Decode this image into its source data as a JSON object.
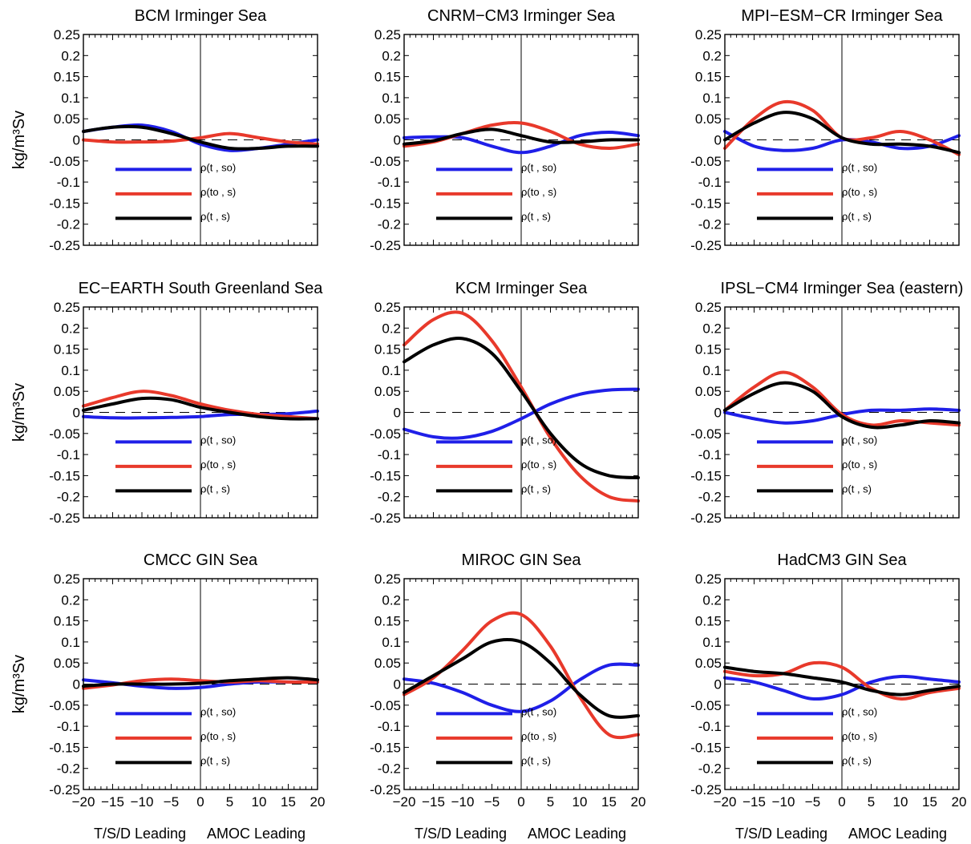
{
  "colors": {
    "s0": "#1f1fe8",
    "t0": "#e8392b",
    "ts": "#000000"
  },
  "y_axis_label": "kg/m³Sv",
  "x_notes": {
    "left": "T/S/D Leading",
    "right": "AMOC Leading"
  },
  "chart_data": [
    {
      "type": "line",
      "title": "BCM Irminger Sea",
      "xlim": [
        -20,
        20
      ],
      "ylim": [
        -0.25,
        0.25
      ],
      "xticks": [],
      "yticks": [
        "0.25",
        "0.2",
        "0.15",
        "0.1",
        "0.05",
        "0",
        "-0.05",
        "-0.1",
        "-0.15",
        "-0.2",
        "-0.25"
      ],
      "x": [
        -20,
        -15,
        -10,
        -5,
        0,
        5,
        10,
        15,
        20
      ],
      "series": [
        {
          "name": "ρ(t , so)",
          "values": [
            0.02,
            0.03,
            0.035,
            0.02,
            -0.01,
            -0.025,
            -0.02,
            -0.01,
            0.0
          ]
        },
        {
          "name": "ρ(to , s)",
          "values": [
            0.0,
            -0.005,
            -0.005,
            -0.003,
            0.005,
            0.015,
            0.005,
            -0.005,
            -0.01
          ]
        },
        {
          "name": "ρ(t , s)",
          "values": [
            0.02,
            0.03,
            0.03,
            0.015,
            -0.005,
            -0.02,
            -0.02,
            -0.015,
            -0.015
          ]
        }
      ]
    },
    {
      "type": "line",
      "title": "CNRM−CM3 Irminger Sea",
      "xlim": [
        -20,
        20
      ],
      "ylim": [
        -0.25,
        0.25
      ],
      "xticks": [],
      "yticks": [
        "0.25",
        "0.2",
        "0.15",
        "0.1",
        "0.05",
        "0",
        "-0.05",
        "-0.1",
        "-0.15",
        "-0.2",
        "-0.25"
      ],
      "x": [
        -20,
        -15,
        -10,
        -5,
        0,
        5,
        10,
        15,
        20
      ],
      "series": [
        {
          "name": "ρ(t , so)",
          "values": [
            0.005,
            0.007,
            0.005,
            -0.015,
            -0.03,
            -0.015,
            0.01,
            0.018,
            0.01
          ]
        },
        {
          "name": "ρ(to , s)",
          "values": [
            -0.015,
            -0.005,
            0.015,
            0.035,
            0.04,
            0.02,
            -0.01,
            -0.02,
            -0.01
          ]
        },
        {
          "name": "ρ(t , s)",
          "values": [
            -0.01,
            -0.002,
            0.015,
            0.025,
            0.01,
            -0.005,
            -0.005,
            0.0,
            0.0
          ]
        }
      ]
    },
    {
      "type": "line",
      "title": "MPI−ESM−CR Irminger Sea",
      "xlim": [
        -20,
        20
      ],
      "ylim": [
        -0.25,
        0.25
      ],
      "xticks": [],
      "yticks": [
        "0.25",
        "0.2",
        "0.15",
        "0.1",
        "0.05",
        "0",
        "-0.05",
        "-0.1",
        "-0.15",
        "-0.2",
        "-0.25"
      ],
      "x": [
        -20,
        -15,
        -10,
        -5,
        0,
        5,
        10,
        15,
        20
      ],
      "series": [
        {
          "name": "ρ(t , so)",
          "values": [
            0.02,
            -0.015,
            -0.025,
            -0.02,
            0.0,
            -0.005,
            -0.02,
            -0.015,
            0.01
          ]
        },
        {
          "name": "ρ(to , s)",
          "values": [
            -0.02,
            0.05,
            0.09,
            0.07,
            0.005,
            0.005,
            0.02,
            0.0,
            -0.035
          ]
        },
        {
          "name": "ρ(t , s)",
          "values": [
            0.0,
            0.04,
            0.065,
            0.05,
            0.005,
            -0.01,
            -0.01,
            -0.015,
            -0.03
          ]
        }
      ]
    },
    {
      "type": "line",
      "title": "EC−EARTH South Greenland Sea",
      "xlim": [
        -20,
        20
      ],
      "ylim": [
        -0.25,
        0.25
      ],
      "xticks": [],
      "yticks": [
        "0.25",
        "0.2",
        "0.15",
        "0.1",
        "0.05",
        "0",
        "-0.05",
        "-0.1",
        "-0.15",
        "-0.2",
        "-0.25"
      ],
      "x": [
        -20,
        -15,
        -10,
        -5,
        0,
        5,
        10,
        15,
        20
      ],
      "series": [
        {
          "name": "ρ(t , so)",
          "values": [
            -0.01,
            -0.013,
            -0.013,
            -0.012,
            -0.01,
            -0.005,
            -0.005,
            -0.003,
            0.003
          ]
        },
        {
          "name": "ρ(to , s)",
          "values": [
            0.015,
            0.035,
            0.05,
            0.04,
            0.02,
            0.005,
            -0.005,
            -0.01,
            -0.015
          ]
        },
        {
          "name": "ρ(t , s)",
          "values": [
            0.005,
            0.02,
            0.033,
            0.03,
            0.012,
            0.0,
            -0.01,
            -0.015,
            -0.015
          ]
        }
      ]
    },
    {
      "type": "line",
      "title": "KCM Irminger Sea",
      "xlim": [
        -20,
        20
      ],
      "ylim": [
        -0.25,
        0.25
      ],
      "xticks": [],
      "yticks": [
        "0.25",
        "0.2",
        "0.15",
        "0.1",
        "0.05",
        "0",
        "-0.05",
        "-0.1",
        "-0.15",
        "-0.2",
        "-0.25"
      ],
      "x": [
        -20,
        -15,
        -10,
        -5,
        0,
        5,
        10,
        15,
        20
      ],
      "series": [
        {
          "name": "ρ(t , so)",
          "values": [
            -0.04,
            -0.058,
            -0.06,
            -0.045,
            -0.015,
            0.02,
            0.043,
            0.053,
            0.055
          ]
        },
        {
          "name": "ρ(to , s)",
          "values": [
            0.16,
            0.22,
            0.235,
            0.17,
            0.06,
            -0.06,
            -0.15,
            -0.2,
            -0.21
          ]
        },
        {
          "name": "ρ(t , s)",
          "values": [
            0.12,
            0.16,
            0.175,
            0.14,
            0.05,
            -0.05,
            -0.12,
            -0.15,
            -0.155
          ]
        }
      ]
    },
    {
      "type": "line",
      "title": "IPSL−CM4 Irminger Sea (eastern)",
      "xlim": [
        -20,
        20
      ],
      "ylim": [
        -0.25,
        0.25
      ],
      "xticks": [],
      "yticks": [
        "0.25",
        "0.2",
        "0.15",
        "0.1",
        "0.05",
        "0",
        "-0.05",
        "-0.1",
        "-0.15",
        "-0.2",
        "-0.25"
      ],
      "x": [
        -20,
        -15,
        -10,
        -5,
        0,
        5,
        10,
        15,
        20
      ],
      "series": [
        {
          "name": "ρ(t , so)",
          "values": [
            0.0,
            -0.015,
            -0.025,
            -0.02,
            -0.005,
            0.005,
            0.005,
            0.008,
            0.005
          ]
        },
        {
          "name": "ρ(to , s)",
          "values": [
            0.005,
            0.06,
            0.095,
            0.06,
            -0.005,
            -0.03,
            -0.02,
            -0.025,
            -0.03
          ]
        },
        {
          "name": "ρ(t , s)",
          "values": [
            0.005,
            0.045,
            0.07,
            0.05,
            -0.01,
            -0.035,
            -0.03,
            -0.02,
            -0.025
          ]
        }
      ]
    },
    {
      "type": "line",
      "title": "CMCC GIN Sea",
      "xlim": [
        -20,
        20
      ],
      "ylim": [
        -0.25,
        0.25
      ],
      "xticks": [
        "−20",
        "−15",
        "−10",
        "−5",
        "0",
        "5",
        "10",
        "15",
        "20"
      ],
      "yticks": [
        "0.25",
        "0.2",
        "0.15",
        "0.1",
        "0.05",
        "0",
        "-0.05",
        "-0.1",
        "-0.15",
        "-0.2",
        "-0.25"
      ],
      "x": [
        -20,
        -15,
        -10,
        -5,
        0,
        5,
        10,
        15,
        20
      ],
      "series": [
        {
          "name": "ρ(t , so)",
          "values": [
            0.01,
            0.003,
            -0.005,
            -0.01,
            -0.008,
            0.0,
            0.005,
            0.005,
            0.005
          ]
        },
        {
          "name": "ρ(to , s)",
          "values": [
            -0.01,
            -0.002,
            0.008,
            0.012,
            0.008,
            0.005,
            0.008,
            0.005,
            0.005
          ]
        },
        {
          "name": "ρ(t , s)",
          "values": [
            -0.005,
            0.0,
            0.0,
            0.0,
            0.002,
            0.008,
            0.012,
            0.015,
            0.01
          ]
        }
      ]
    },
    {
      "type": "line",
      "title": "MIROC GIN Sea",
      "xlim": [
        -20,
        20
      ],
      "ylim": [
        -0.25,
        0.25
      ],
      "xticks": [
        "−20",
        "−15",
        "−10",
        "−5",
        "0",
        "5",
        "10",
        "15",
        "20"
      ],
      "yticks": [
        "0.25",
        "0.2",
        "0.15",
        "0.1",
        "0.05",
        "0",
        "-0.05",
        "-0.1",
        "-0.15",
        "-0.2",
        "-0.25"
      ],
      "x": [
        -20,
        -15,
        -10,
        -5,
        0,
        5,
        10,
        15,
        20
      ],
      "series": [
        {
          "name": "ρ(t , so)",
          "values": [
            0.012,
            0.002,
            -0.02,
            -0.05,
            -0.065,
            -0.04,
            0.01,
            0.045,
            0.045
          ]
        },
        {
          "name": "ρ(to , s)",
          "values": [
            -0.025,
            0.015,
            0.08,
            0.15,
            0.165,
            0.09,
            -0.03,
            -0.12,
            -0.12
          ]
        },
        {
          "name": "ρ(t , s)",
          "values": [
            -0.02,
            0.02,
            0.06,
            0.1,
            0.1,
            0.05,
            -0.025,
            -0.075,
            -0.075
          ]
        }
      ]
    },
    {
      "type": "line",
      "title": "HadCM3 GIN Sea",
      "xlim": [
        -20,
        20
      ],
      "ylim": [
        -0.25,
        0.25
      ],
      "xticks": [
        "−20",
        "−15",
        "−10",
        "−5",
        "0",
        "5",
        "10",
        "15",
        "20"
      ],
      "yticks": [
        "0.25",
        "0.2",
        "0.15",
        "0.1",
        "0.05",
        "0",
        "-0.05",
        "-0.1",
        "-0.15",
        "-0.2",
        "-0.25"
      ],
      "x": [
        -20,
        -15,
        -10,
        -5,
        0,
        5,
        10,
        15,
        20
      ],
      "series": [
        {
          "name": "ρ(t , so)",
          "values": [
            0.015,
            0.005,
            -0.015,
            -0.035,
            -0.025,
            0.005,
            0.018,
            0.012,
            0.005
          ]
        },
        {
          "name": "ρ(to , s)",
          "values": [
            0.03,
            0.02,
            0.025,
            0.05,
            0.04,
            -0.01,
            -0.035,
            -0.02,
            -0.01
          ]
        },
        {
          "name": "ρ(t , s)",
          "values": [
            0.04,
            0.03,
            0.025,
            0.015,
            0.005,
            -0.015,
            -0.025,
            -0.015,
            -0.005
          ]
        }
      ]
    }
  ]
}
